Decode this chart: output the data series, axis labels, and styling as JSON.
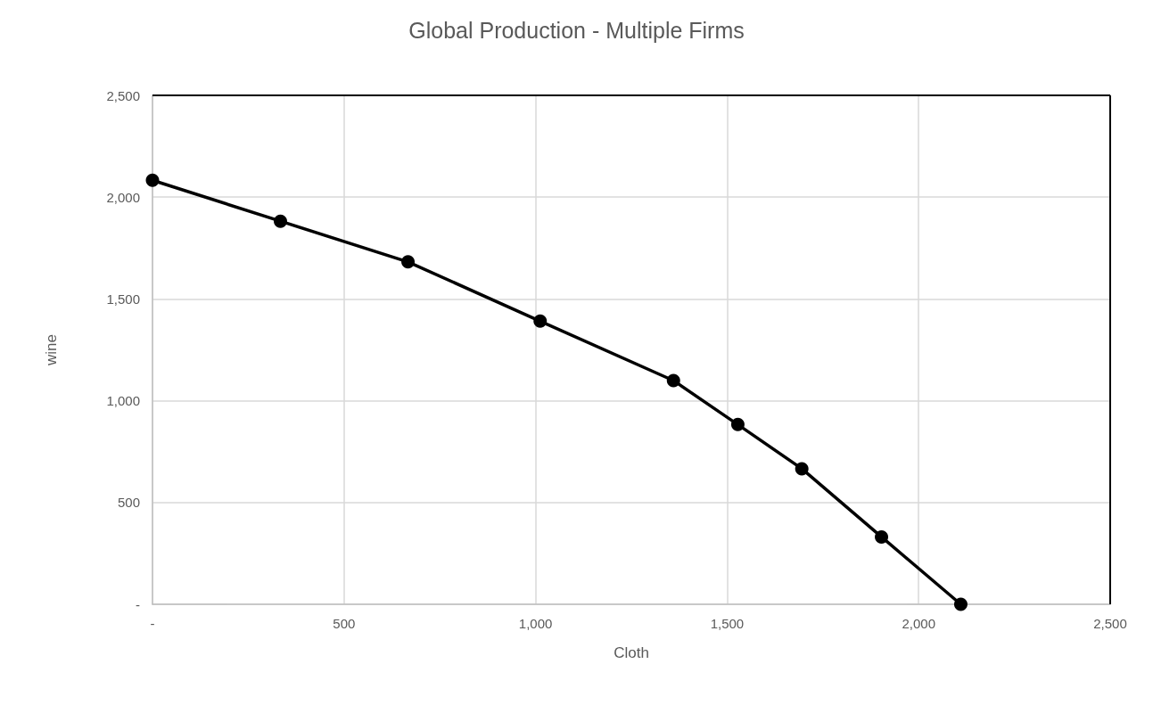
{
  "chart_data": {
    "type": "line",
    "title": "Global Production - Multiple Firms",
    "xlabel": "Cloth",
    "ylabel": "wine",
    "x": [
      0,
      334,
      667,
      1012,
      1360,
      1528,
      1695,
      1903,
      2110
    ],
    "series": [
      {
        "color": "#000000",
        "values": [
          2083,
          1882,
          1682,
          1391,
          1099,
          883,
          666,
          331,
          0
        ]
      }
    ],
    "xlim": [
      0,
      2500
    ],
    "xticks": [
      {
        "value": 0,
        "label": "-"
      },
      {
        "value": 500,
        "label": "500"
      },
      {
        "value": 1000,
        "label": "1,000"
      },
      {
        "value": 1500,
        "label": "1,500"
      },
      {
        "value": 2000,
        "label": "2,000"
      },
      {
        "value": 2500,
        "label": "2,500"
      }
    ],
    "ylim": [
      0,
      2500
    ],
    "yticks": [
      {
        "value": 0,
        "label": "-"
      },
      {
        "value": 500,
        "label": "500"
      },
      {
        "value": 1000,
        "label": "1,000"
      },
      {
        "value": 1500,
        "label": "1,500"
      },
      {
        "value": 2000,
        "label": "2,000"
      },
      {
        "value": 2500,
        "label": "2,500"
      }
    ],
    "grid": true,
    "marker": "circle",
    "line_style": "solid"
  }
}
